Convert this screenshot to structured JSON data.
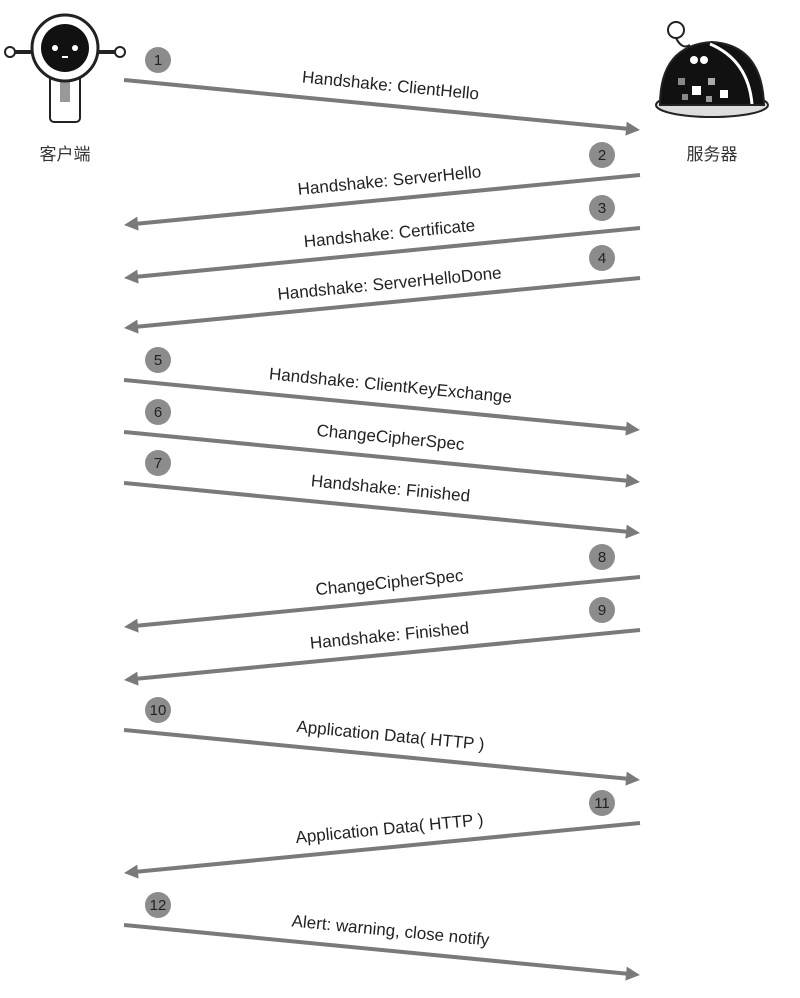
{
  "actors": {
    "client": {
      "label": "客户端",
      "icon": "robot-client-icon"
    },
    "server": {
      "label": "服务器",
      "icon": "robot-server-icon"
    }
  },
  "colors": {
    "arrow": "#7a7a7a",
    "badge": "#8c8c8c",
    "text": "#222222"
  },
  "messages": [
    {
      "number": "1",
      "label": "Handshake: ClientHello",
      "direction": "client-to-server"
    },
    {
      "number": "2",
      "label": "Handshake: ServerHello",
      "direction": "server-to-client"
    },
    {
      "number": "3",
      "label": "Handshake: Certificate",
      "direction": "server-to-client"
    },
    {
      "number": "4",
      "label": "Handshake: ServerHelloDone",
      "direction": "server-to-client"
    },
    {
      "number": "5",
      "label": "Handshake: ClientKeyExchange",
      "direction": "client-to-server"
    },
    {
      "number": "6",
      "label": "ChangeCipherSpec",
      "direction": "client-to-server"
    },
    {
      "number": "7",
      "label": "Handshake: Finished",
      "direction": "client-to-server"
    },
    {
      "number": "8",
      "label": "ChangeCipherSpec",
      "direction": "server-to-client"
    },
    {
      "number": "9",
      "label": "Handshake: Finished",
      "direction": "server-to-client"
    },
    {
      "number": "10",
      "label": "Application Data( HTTP )",
      "direction": "client-to-server"
    },
    {
      "number": "11",
      "label": "Application Data( HTTP )",
      "direction": "server-to-client"
    },
    {
      "number": "12",
      "label": "Alert: warning, close notify",
      "direction": "client-to-server"
    }
  ]
}
